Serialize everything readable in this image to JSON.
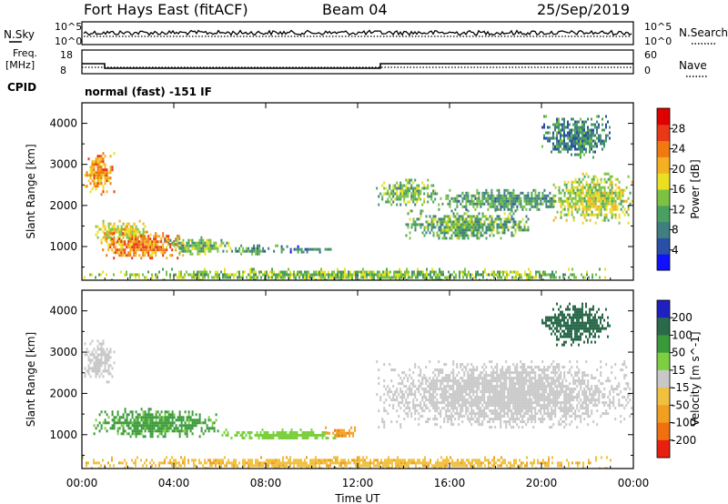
{
  "header": {
    "title": "Fort Hays East (fitACF)",
    "beam": "Beam 04",
    "date": "25/Sep/2019"
  },
  "param_labels": {
    "nsky": "N.Sky",
    "freq": "Freq.",
    "freq_unit": "[MHz]",
    "cpid": "CPID",
    "nsearch": "N.Search",
    "nave": "Nave",
    "program": "normal (fast) -151 IF"
  },
  "param_ticks": {
    "noise_left": [
      "10^5",
      "10^0"
    ],
    "noise_right": [
      "10^5",
      "10^0"
    ],
    "freq_left": [
      "18",
      "8"
    ],
    "freq_right": [
      "60",
      "0"
    ]
  },
  "chart_data": [
    {
      "type": "heatmap",
      "name": "power",
      "xlabel": "",
      "ylabel": "Slant Range [km]",
      "x_ticks": [
        "00:00",
        "04:00",
        "08:00",
        "12:00",
        "16:00",
        "20:00",
        "00:00"
      ],
      "y_ticks": [
        1000,
        2000,
        3000,
        4000
      ],
      "ylim": [
        180,
        4500
      ],
      "xlim_hours": [
        0,
        24
      ],
      "colorbar": {
        "label": "Power [dB]",
        "ticks": [
          4,
          8,
          12,
          16,
          20,
          24,
          28
        ],
        "range": [
          0,
          32
        ],
        "colors": [
          "#1010ff",
          "#2a4fa8",
          "#3f7f80",
          "#4aa060",
          "#7cc242",
          "#e8e020",
          "#f4b020",
          "#f07a10",
          "#e83818",
          "#e00000"
        ]
      },
      "regions": [
        {
          "t0": 0.1,
          "t1": 1.4,
          "r0": 2300,
          "r1": 3300,
          "value": 22
        },
        {
          "t0": 0.5,
          "t1": 3.0,
          "r0": 1100,
          "r1": 1650,
          "value": 18
        },
        {
          "t0": 0.8,
          "t1": 4.5,
          "r0": 750,
          "r1": 1350,
          "value": 23
        },
        {
          "t0": 3.5,
          "t1": 6.5,
          "r0": 850,
          "r1": 1250,
          "value": 13
        },
        {
          "t0": 6.5,
          "t1": 8.5,
          "r0": 850,
          "r1": 1050,
          "value": 10
        },
        {
          "t0": 8.5,
          "t1": 11.0,
          "r0": 880,
          "r1": 1030,
          "value": 7
        },
        {
          "t0": 0.0,
          "t1": 23.0,
          "r0": 200,
          "r1": 480,
          "value": 14
        },
        {
          "t0": 12.8,
          "t1": 15.5,
          "r0": 2050,
          "r1": 2650,
          "value": 13
        },
        {
          "t0": 14.0,
          "t1": 19.5,
          "r0": 1200,
          "r1": 1900,
          "value": 12
        },
        {
          "t0": 15.5,
          "t1": 21.5,
          "r0": 1900,
          "r1": 2400,
          "value": 11
        },
        {
          "t0": 20.5,
          "t1": 24.0,
          "r0": 1600,
          "r1": 2800,
          "value": 16
        },
        {
          "t0": 20.0,
          "t1": 23.0,
          "r0": 3200,
          "r1": 4200,
          "value": 9
        }
      ]
    },
    {
      "type": "heatmap",
      "name": "velocity",
      "xlabel": "Time UT",
      "ylabel": "Slant Range [km]",
      "x_ticks": [
        "00:00",
        "04:00",
        "08:00",
        "12:00",
        "16:00",
        "20:00",
        "00:00"
      ],
      "y_ticks": [
        1000,
        2000,
        3000,
        4000
      ],
      "ylim": [
        180,
        4500
      ],
      "xlim_hours": [
        0,
        24
      ],
      "colorbar": {
        "label": "Velocity [m s^-1]",
        "ticks": [
          200,
          100,
          50,
          15,
          -15,
          -50,
          -100,
          -200
        ],
        "colors": [
          "#2020c0",
          "#2a6a4a",
          "#3a9a3a",
          "#7cd040",
          "#c8c8c8",
          "#f0c040",
          "#f0a020",
          "#f07010",
          "#e82010"
        ]
      },
      "regions": [
        {
          "t0": 0.1,
          "t1": 1.4,
          "r0": 2300,
          "r1": 3300,
          "value": 0
        },
        {
          "t0": 0.5,
          "t1": 6.0,
          "r0": 950,
          "r1": 1650,
          "value": 60
        },
        {
          "t0": 6.0,
          "t1": 11.5,
          "r0": 900,
          "r1": 1150,
          "value": 30
        },
        {
          "t0": 10.5,
          "t1": 12.0,
          "r0": 950,
          "r1": 1200,
          "value": -90
        },
        {
          "t0": 0.0,
          "t1": 23.0,
          "r0": 200,
          "r1": 480,
          "value": -40
        },
        {
          "t0": 12.8,
          "t1": 24.0,
          "r0": 1200,
          "r1": 2800,
          "value": 0
        },
        {
          "t0": 20.0,
          "t1": 23.0,
          "r0": 3200,
          "r1": 4200,
          "value": 150
        }
      ]
    }
  ]
}
